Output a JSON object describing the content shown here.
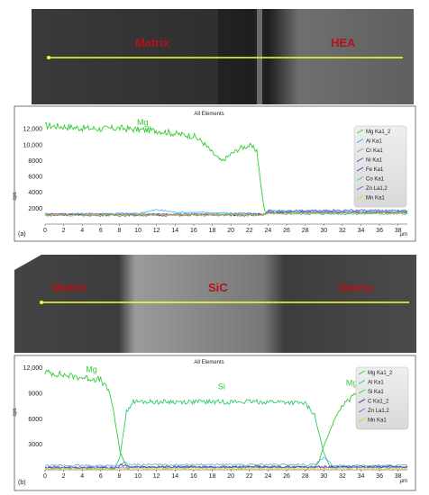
{
  "colors": {
    "mg": "#33cc33",
    "al": "#3aa6e0",
    "cr": "#4fb6e8",
    "ni": "#8b2c8b",
    "fe": "#3b3bd1",
    "co": "#33cccc",
    "zn": "#9b4be0",
    "mn": "#d7d700",
    "si": "#2ecc71",
    "c": "#2323aa",
    "yellow_line": "#ffff33",
    "label_red": "#b3121b"
  },
  "images": [
    {
      "labels": [
        "Matrix",
        "HEA"
      ]
    },
    {
      "labels": [
        "Matrix",
        "SiC",
        "Matrix"
      ]
    }
  ],
  "chart_data": [
    {
      "type": "line",
      "panel_label": "(a)",
      "title": "All Elements",
      "ylabel": "cps",
      "xunit": "µm",
      "xlim": [
        0,
        39
      ],
      "ylim": [
        0,
        13500
      ],
      "x_ticks": [
        0,
        2,
        4,
        6,
        8,
        10,
        12,
        14,
        16,
        18,
        20,
        22,
        24,
        26,
        28,
        30,
        32,
        34,
        36,
        38
      ],
      "y_ticks": [
        2000,
        4000,
        6000,
        8000,
        10000,
        12000
      ],
      "y_tick_labels": [
        "2000",
        "4000",
        "6000",
        "8000",
        "10,000",
        "12,000"
      ],
      "annotations": [
        {
          "text": "Mg",
          "x": 10.5,
          "y": 12500
        }
      ],
      "legend": {
        "placement": "right",
        "entries": [
          "Mg Ka1_2",
          "Al Ka1",
          "Cr Ka1",
          "Ni Ka1",
          "Fe Ka1",
          "Co Ka1",
          "Zn La1,2",
          "Mn Ka1"
        ]
      },
      "series": [
        {
          "key": "mg",
          "points": [
            [
              0,
              12400
            ],
            [
              2,
              12300
            ],
            [
              4,
              12100
            ],
            [
              6,
              12000
            ],
            [
              8,
              12100
            ],
            [
              10,
              11900
            ],
            [
              12,
              11800
            ],
            [
              14,
              11400
            ],
            [
              16,
              11100
            ],
            [
              17,
              10300
            ],
            [
              18,
              9000
            ],
            [
              19,
              7900
            ],
            [
              20,
              8800
            ],
            [
              21,
              9600
            ],
            [
              22,
              9900
            ],
            [
              22.8,
              9300
            ],
            [
              23.2,
              5200
            ],
            [
              23.6,
              1700
            ],
            [
              24,
              1500
            ],
            [
              30,
              1500
            ],
            [
              39,
              1500
            ]
          ]
        },
        {
          "key": "al",
          "points": [
            [
              0,
              1300
            ],
            [
              10,
              1350
            ],
            [
              12,
              1800
            ],
            [
              14,
              1500
            ],
            [
              20,
              1400
            ],
            [
              23.5,
              1300
            ],
            [
              39,
              1300
            ]
          ]
        },
        {
          "key": "cr",
          "points": [
            [
              0,
              1250
            ],
            [
              23.5,
              1250
            ],
            [
              24,
              1350
            ],
            [
              39,
              1400
            ]
          ]
        },
        {
          "key": "ni",
          "points": [
            [
              0,
              1100
            ],
            [
              23.5,
              1100
            ],
            [
              24,
              1450
            ],
            [
              39,
              1500
            ]
          ]
        },
        {
          "key": "fe",
          "points": [
            [
              0,
              1200
            ],
            [
              23.5,
              1200
            ],
            [
              24,
              1700
            ],
            [
              32,
              1750
            ],
            [
              39,
              1700
            ]
          ]
        },
        {
          "key": "co",
          "points": [
            [
              0,
              1250
            ],
            [
              23.5,
              1250
            ],
            [
              24,
              1600
            ],
            [
              39,
              1600
            ]
          ]
        },
        {
          "key": "zn",
          "points": [
            [
              0,
              1200
            ],
            [
              23.5,
              1200
            ],
            [
              24,
              1500
            ],
            [
              39,
              1500
            ]
          ]
        },
        {
          "key": "mn",
          "points": [
            [
              0,
              1150
            ],
            [
              23.5,
              1150
            ],
            [
              24,
              1350
            ],
            [
              39,
              1400
            ]
          ]
        }
      ]
    },
    {
      "type": "line",
      "panel_label": "(b)",
      "title": "All Elements",
      "ylabel": "cps",
      "xunit": "µm",
      "xlim": [
        0,
        39
      ],
      "ylim": [
        0,
        12500
      ],
      "x_ticks": [
        0,
        2,
        4,
        6,
        8,
        10,
        12,
        14,
        16,
        18,
        20,
        22,
        24,
        26,
        28,
        30,
        32,
        34,
        36,
        38
      ],
      "y_ticks": [
        3000,
        6000,
        9000,
        12000
      ],
      "y_tick_labels": [
        "3000",
        "6000",
        "9000",
        "12,000"
      ],
      "annotations": [
        {
          "text": "Mg",
          "x": 5,
          "y": 11500
        },
        {
          "text": "Si",
          "x": 19,
          "y": 9500
        },
        {
          "text": "Mg",
          "x": 33,
          "y": 9900
        }
      ],
      "legend": {
        "placement": "right",
        "entries": [
          "Mg Ka1_2",
          "Al Ka1",
          "Si Ka1",
          "C Ka1_2",
          "Zn La1,2",
          "Mn Ka1"
        ]
      },
      "series": [
        {
          "key": "mg",
          "points": [
            [
              0,
              11500
            ],
            [
              3,
              11000
            ],
            [
              6,
              10600
            ],
            [
              7,
              9000
            ],
            [
              7.5,
              6000
            ],
            [
              8,
              2500
            ],
            [
              8.5,
              900
            ],
            [
              9,
              300
            ],
            [
              29,
              300
            ],
            [
              29.5,
              1000
            ],
            [
              30,
              2800
            ],
            [
              31,
              5500
            ],
            [
              32,
              7500
            ],
            [
              33,
              8500
            ],
            [
              34,
              9200
            ],
            [
              36,
              10200
            ],
            [
              39,
              11000
            ]
          ]
        },
        {
          "key": "si",
          "points": [
            [
              0,
              200
            ],
            [
              7.5,
              200
            ],
            [
              8,
              1200
            ],
            [
              8.4,
              4200
            ],
            [
              8.8,
              7000
            ],
            [
              9.5,
              8000
            ],
            [
              12,
              8000
            ],
            [
              18,
              8000
            ],
            [
              25,
              8000
            ],
            [
              28,
              7800
            ],
            [
              29,
              6500
            ],
            [
              29.5,
              4200
            ],
            [
              30,
              2000
            ],
            [
              30.5,
              700
            ],
            [
              31,
              300
            ],
            [
              39,
              300
            ]
          ]
        },
        {
          "key": "al",
          "points": [
            [
              0,
              500
            ],
            [
              8,
              500
            ],
            [
              8.5,
              900
            ],
            [
              9,
              600
            ],
            [
              29,
              600
            ],
            [
              30,
              1400
            ],
            [
              31,
              500
            ],
            [
              39,
              500
            ]
          ]
        },
        {
          "key": "c",
          "points": [
            [
              0,
              250
            ],
            [
              7.8,
              250
            ],
            [
              8.2,
              600
            ],
            [
              9,
              350
            ],
            [
              39,
              350
            ]
          ]
        },
        {
          "key": "zn",
          "points": [
            [
              0,
              300
            ],
            [
              39,
              300
            ]
          ]
        },
        {
          "key": "mn",
          "points": [
            [
              0,
              150
            ],
            [
              39,
              150
            ]
          ]
        }
      ]
    }
  ]
}
